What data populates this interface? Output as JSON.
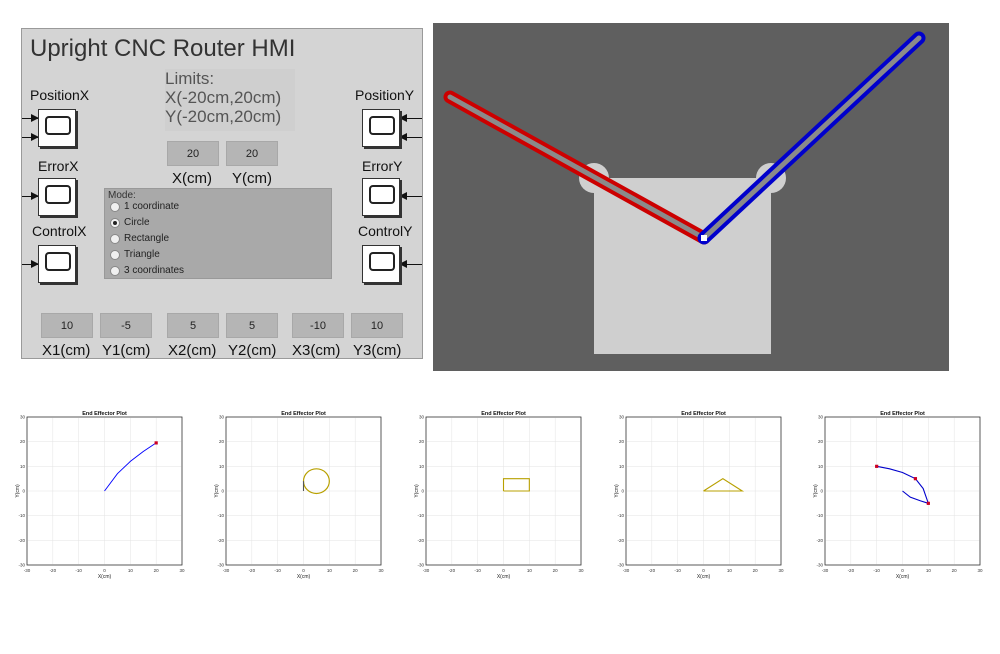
{
  "hmi": {
    "title": "Upright CNC Router HMI",
    "limits": {
      "heading": "Limits:",
      "x": "X(-20cm,20cm)",
      "y": "Y(-20cm,20cm)"
    },
    "target": {
      "x_value": "20",
      "y_value": "20",
      "x_label": "X(cm)",
      "y_label": "Y(cm)"
    },
    "scopes": {
      "position_x": "PositionX",
      "error_x": "ErrorX",
      "control_x": "ControlX",
      "position_y": "PositionY",
      "error_y": "ErrorY",
      "control_y": "ControlY"
    },
    "mode": {
      "title": "Mode:",
      "options": [
        "1 coordinate",
        "Circle",
        "Rectangle",
        "Triangle",
        "3 coordinates"
      ],
      "selected": "Circle"
    },
    "coords": {
      "values": [
        "10",
        "-5",
        "5",
        "5",
        "-10",
        "10"
      ],
      "labels": [
        "X1(cm)",
        "Y1(cm)",
        "X2(cm)",
        "Y2(cm)",
        "X3(cm)",
        "Y3(cm)"
      ]
    }
  },
  "animation": {
    "arm_left_color": "#cc0000",
    "arm_right_color": "#0000cc",
    "background": "#5f5f5f",
    "body_color": "#cfcfcf"
  },
  "plots": {
    "title": "End Effector Plot",
    "xlabel": "X(cm)",
    "ylabel": "Y(cm)",
    "ticks": [
      "-30",
      "-20",
      "-10",
      "0",
      "10",
      "20",
      "30"
    ]
  },
  "chart_data": [
    {
      "type": "line",
      "title": "End Effector Plot",
      "xlabel": "X(cm)",
      "ylabel": "Y(cm)",
      "xlim": [
        -30,
        30
      ],
      "ylim": [
        -30,
        30
      ],
      "grid": true,
      "series": [
        {
          "kind": "arc",
          "color": "#0000ff",
          "points": [
            [
              0,
              0
            ],
            [
              5,
              7
            ],
            [
              10,
              12
            ],
            [
              15,
              16
            ],
            [
              20,
              19.5
            ]
          ]
        }
      ],
      "markers": [
        [
          20,
          19.5
        ]
      ]
    },
    {
      "type": "line",
      "title": "End Effector Plot",
      "xlabel": "X(cm)",
      "ylabel": "Y(cm)",
      "xlim": [
        -30,
        30
      ],
      "ylim": [
        -30,
        30
      ],
      "grid": true,
      "series": [
        {
          "kind": "circle",
          "color": "#b8a000",
          "cx": 5,
          "cy": 4,
          "r": 5
        },
        {
          "kind": "polyline",
          "color": "#555555",
          "points": [
            [
              0,
              0
            ],
            [
              0,
              4
            ]
          ]
        }
      ],
      "markers": []
    },
    {
      "type": "line",
      "title": "End Effector Plot",
      "xlabel": "X(cm)",
      "ylabel": "Y(cm)",
      "xlim": [
        -30,
        30
      ],
      "ylim": [
        -30,
        30
      ],
      "grid": true,
      "series": [
        {
          "kind": "polyline",
          "color": "#b8a000",
          "points": [
            [
              0,
              0
            ],
            [
              10,
              0
            ],
            [
              10,
              5
            ],
            [
              0,
              5
            ],
            [
              0,
              0
            ]
          ]
        }
      ],
      "markers": []
    },
    {
      "type": "line",
      "title": "End Effector Plot",
      "xlabel": "X(cm)",
      "ylabel": "Y(cm)",
      "xlim": [
        -30,
        30
      ],
      "ylim": [
        -30,
        30
      ],
      "grid": true,
      "series": [
        {
          "kind": "polyline",
          "color": "#b8a000",
          "points": [
            [
              0,
              0
            ],
            [
              15,
              0
            ],
            [
              7.5,
              5
            ],
            [
              0,
              0
            ]
          ]
        }
      ],
      "markers": []
    },
    {
      "type": "line",
      "title": "End Effector Plot",
      "xlabel": "X(cm)",
      "ylabel": "Y(cm)",
      "xlim": [
        -30,
        30
      ],
      "ylim": [
        -30,
        30
      ],
      "grid": true,
      "series": [
        {
          "kind": "polyline",
          "color": "#0000cc",
          "points": [
            [
              -10,
              10
            ],
            [
              -5,
              9
            ],
            [
              0,
              7.5
            ],
            [
              5,
              5
            ],
            [
              8,
              1
            ],
            [
              10,
              -5
            ],
            [
              7,
              -4
            ],
            [
              3,
              -2.5
            ],
            [
              0,
              0
            ]
          ]
        }
      ],
      "markers": [
        [
          -10,
          10
        ],
        [
          5,
          5
        ],
        [
          10,
          -5
        ]
      ]
    }
  ]
}
